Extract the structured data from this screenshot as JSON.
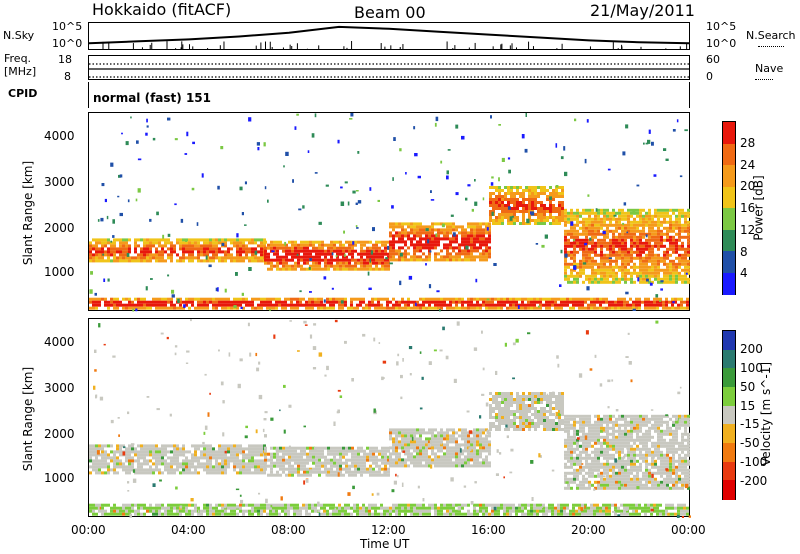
{
  "header": {
    "station": "Hokkaido (fitACF)",
    "beam": "Beam 00",
    "date": "21/May/2011"
  },
  "strip_labels": {
    "nsky": "N.Sky",
    "nsearch": "N.Search",
    "freq_line1": "Freq.",
    "freq_line2": "[MHz]",
    "nave": "Nave",
    "cpid": "CPID",
    "cpid_value": "normal (fast) 151",
    "noise_hi": "10^5",
    "noise_lo": "10^0",
    "freq_hi": "18",
    "freq_lo": "8",
    "nave_hi": "60",
    "nave_lo": "0"
  },
  "axes": {
    "xlabel": "Time UT",
    "xticks": [
      "00:00",
      "04:00",
      "08:00",
      "12:00",
      "16:00",
      "20:00",
      "00:00"
    ],
    "ylabel": "Slant Range [km]",
    "yticks": [
      "1000",
      "2000",
      "3000",
      "4000"
    ]
  },
  "colorbars": {
    "power": {
      "label": "Power [dB]",
      "ticks": [
        "4",
        "8",
        "12",
        "16",
        "20",
        "24",
        "28"
      ],
      "colors": [
        "#1a1aff",
        "#2050a8",
        "#2e8b57",
        "#7bc843",
        "#f0c419",
        "#f59a1b",
        "#f06a14",
        "#e8180c"
      ]
    },
    "velocity": {
      "label": "Velocity [m s^-1]",
      "ticks": [
        "200",
        "100",
        "50",
        "15",
        "-15",
        "-50",
        "-100",
        "-200"
      ],
      "colors": [
        "#2038b0",
        "#2a7a70",
        "#3a9a3a",
        "#7ccd3c",
        "#c8c8c0",
        "#f0b020",
        "#f07a10",
        "#e83a10",
        "#e00000"
      ]
    }
  },
  "chart_data": [
    {
      "type": "heatmap",
      "title": "",
      "variable": "Power [dB]",
      "xlabel": "Time UT",
      "ylabel": "Slant Range [km]",
      "x_range": [
        "00:00",
        "24:00"
      ],
      "y_range": [
        180,
        4500
      ],
      "color_range": [
        0,
        30
      ],
      "bands": [
        {
          "t": [
            0.0,
            7.0
          ],
          "range": [
            1250,
            1750
          ],
          "value": 22
        },
        {
          "t": [
            7.0,
            12.0
          ],
          "range": [
            1100,
            1700
          ],
          "value": 25
        },
        {
          "t": [
            12.0,
            16.0
          ],
          "range": [
            1250,
            2100
          ],
          "value": 24
        },
        {
          "t": [
            16.0,
            19.0
          ],
          "range": [
            2100,
            2900
          ],
          "value": 22
        },
        {
          "t": [
            19.0,
            24.0
          ],
          "range": [
            800,
            2400
          ],
          "value": 21
        },
        {
          "t": [
            0.0,
            24.0
          ],
          "range": [
            250,
            450
          ],
          "value": 26
        }
      ]
    },
    {
      "type": "heatmap",
      "title": "",
      "variable": "Velocity [m s^-1]",
      "xlabel": "Time UT",
      "ylabel": "Slant Range [km]",
      "x_range": [
        "00:00",
        "24:00"
      ],
      "y_range": [
        180,
        4500
      ],
      "color_range": [
        -200,
        200
      ],
      "bands": [
        {
          "t": [
            0.0,
            7.0
          ],
          "range": [
            1150,
            1750
          ],
          "value": 0
        },
        {
          "t": [
            7.0,
            12.0
          ],
          "range": [
            1100,
            1700
          ],
          "value": 0
        },
        {
          "t": [
            12.0,
            16.0
          ],
          "range": [
            1250,
            2100
          ],
          "value": 0
        },
        {
          "t": [
            16.0,
            19.0
          ],
          "range": [
            2100,
            2900
          ],
          "value": 0
        },
        {
          "t": [
            19.0,
            24.0
          ],
          "range": [
            800,
            2400
          ],
          "value": 0
        },
        {
          "t": [
            0.0,
            24.0
          ],
          "range": [
            250,
            450
          ],
          "value": 20
        }
      ]
    },
    {
      "type": "line",
      "title": "",
      "variable": "N.Sky",
      "x": [
        0,
        2,
        4,
        6,
        8,
        10,
        12,
        14,
        16,
        18,
        20,
        22,
        24
      ],
      "y": [
        1.2,
        1.6,
        2.0,
        2.6,
        3.4,
        4.6,
        4.2,
        3.6,
        3.0,
        2.4,
        1.8,
        1.4,
        1.2
      ],
      "ylim": [
        0,
        5
      ]
    }
  ]
}
